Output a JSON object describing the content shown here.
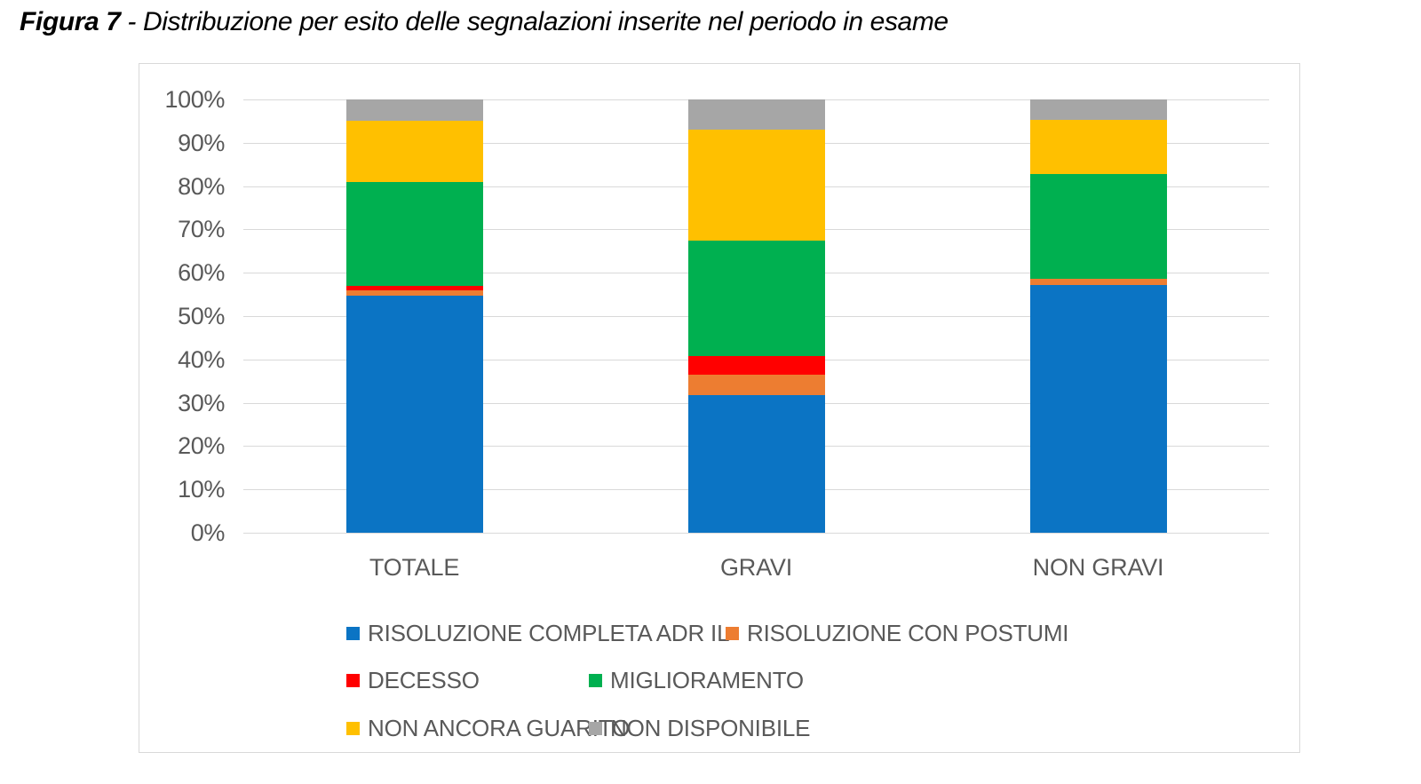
{
  "figure": {
    "title_prefix": "Figura 7",
    "title_rest": " - Distribuzione per esito delle segnalazioni inserite nel periodo in esame"
  },
  "chart_data": {
    "type": "bar",
    "stacking": "percent",
    "title": "Figura 7 - Distribuzione per esito delle segnalazioni inserite nel periodo in esame",
    "categories": [
      "TOTALE",
      "GRAVI",
      "NON GRAVI"
    ],
    "series": [
      {
        "name": "RISOLUZIONE COMPLETA ADR IL",
        "color": "#0B74C4",
        "values": [
          54.7,
          31.7,
          57.2
        ]
      },
      {
        "name": "RISOLUZIONE CON POSTUMI",
        "color": "#ED7D31",
        "values": [
          1.2,
          4.7,
          1.4
        ]
      },
      {
        "name": "DECESSO",
        "color": "#FF0000",
        "values": [
          1.0,
          4.4,
          0.0
        ]
      },
      {
        "name": "MIGLIORAMENTO",
        "color": "#00B050",
        "values": [
          24.0,
          26.7,
          24.1
        ]
      },
      {
        "name": "NON ANCORA GUARITO",
        "color": "#FFC000",
        "values": [
          14.2,
          25.5,
          12.6
        ]
      },
      {
        "name": "NON DISPONIBILE",
        "color": "#A6A6A6",
        "values": [
          4.9,
          7.0,
          4.7
        ]
      }
    ],
    "xlabel": "",
    "ylabel": "",
    "ylim": [
      0,
      100
    ],
    "y_ticks": [
      "0%",
      "10%",
      "20%",
      "30%",
      "40%",
      "50%",
      "60%",
      "70%",
      "80%",
      "90%",
      "100%"
    ],
    "grid": true,
    "legend_position": "bottom",
    "legend_rows": [
      [
        "RISOLUZIONE COMPLETA ADR IL",
        "RISOLUZIONE CON POSTUMI"
      ],
      [
        "DECESSO",
        "MIGLIORAMENTO"
      ],
      [
        "NON ANCORA GUARITO",
        "NON DISPONIBILE"
      ]
    ]
  },
  "colors": {
    "gridline": "#D9D9D9",
    "chart_border": "#D9D9D9",
    "axis_text": "#595959",
    "legend_text": "#595959",
    "title_text": "#000000",
    "background": "#FFFFFF"
  }
}
